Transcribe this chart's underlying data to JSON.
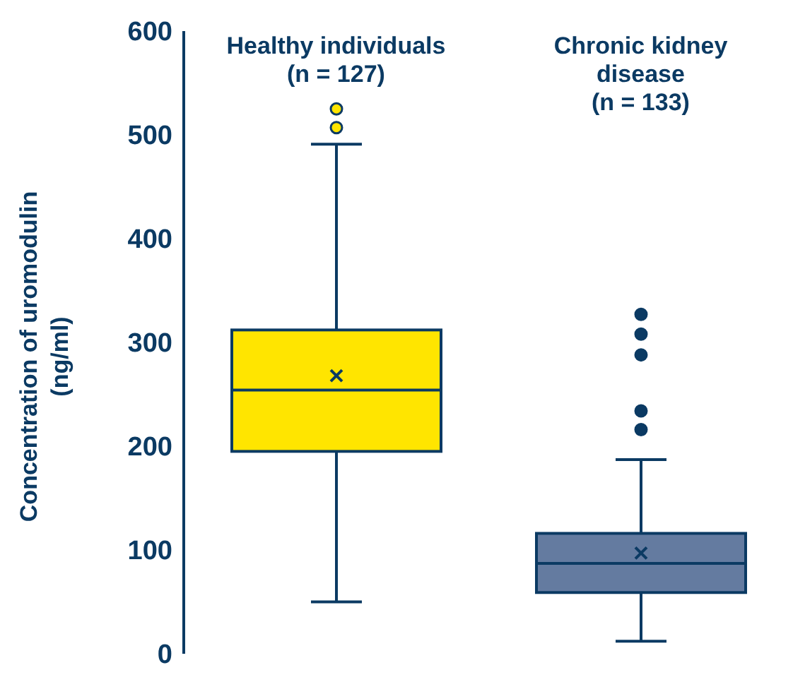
{
  "chart_data": {
    "type": "box",
    "ylabel": "Concentration of uromodulin\n(ng/ml)",
    "categories": [
      "Healthy individuals\n(n = 127)",
      "Chronic kidney\ndisease\n(n = 133)"
    ],
    "colors": [
      "#ffe500",
      "#647ba0"
    ],
    "boxes": [
      {
        "low": 50,
        "q1": 195,
        "median": 254,
        "q3": 312,
        "high": 491,
        "mean": 268,
        "outliers": [
          507,
          525
        ]
      },
      {
        "low": 12,
        "q1": 59,
        "median": 87,
        "q3": 116,
        "high": 187,
        "mean": 97,
        "outliers": [
          216,
          234,
          288,
          308,
          327
        ]
      }
    ],
    "ylim": [
      0,
      600
    ],
    "yticks": [
      0,
      100,
      200,
      300,
      400,
      500,
      600
    ]
  }
}
